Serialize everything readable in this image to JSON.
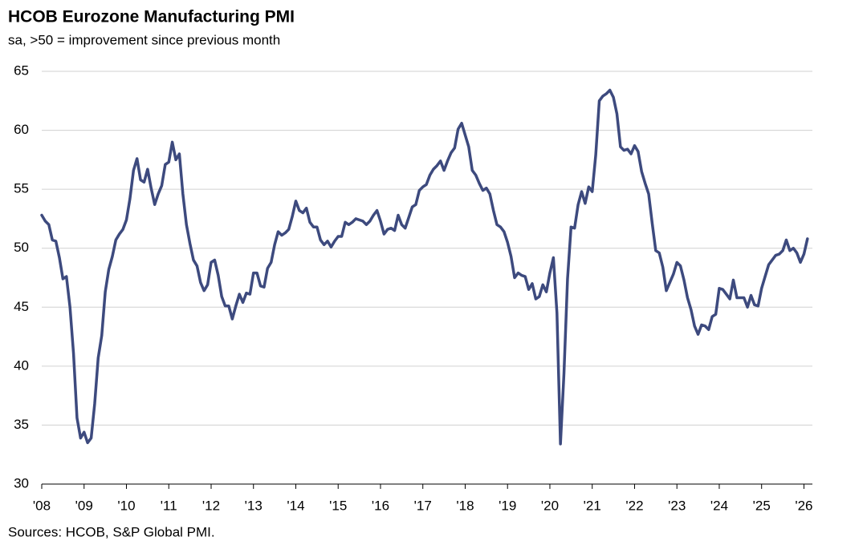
{
  "chart_data": {
    "type": "line",
    "title": "HCOB Eurozone Manufacturing PMI",
    "subtitle": "sa, >50 = improvement  since previous month",
    "source": "Sources: HCOB,  S&P Global  PMI.",
    "grid": true,
    "xlim": [
      2008,
      2026.2
    ],
    "ylim": [
      30,
      65
    ],
    "yticks": [
      30,
      35,
      40,
      45,
      50,
      55,
      60,
      65
    ],
    "xticks": [
      {
        "value": 2008,
        "label": "'08"
      },
      {
        "value": 2009,
        "label": "'09"
      },
      {
        "value": 2010,
        "label": "'10"
      },
      {
        "value": 2011,
        "label": "'11"
      },
      {
        "value": 2012,
        "label": "'12"
      },
      {
        "value": 2013,
        "label": "'13"
      },
      {
        "value": 2014,
        "label": "'14"
      },
      {
        "value": 2015,
        "label": "'15"
      },
      {
        "value": 2016,
        "label": "'16"
      },
      {
        "value": 2017,
        "label": "'17"
      },
      {
        "value": 2018,
        "label": "'18"
      },
      {
        "value": 2019,
        "label": "'19"
      },
      {
        "value": 2020,
        "label": "'20"
      },
      {
        "value": 2021,
        "label": "'21"
      },
      {
        "value": 2022,
        "label": "'22"
      },
      {
        "value": 2023,
        "label": "'23"
      },
      {
        "value": 2024,
        "label": "'24"
      },
      {
        "value": 2025,
        "label": "'25"
      },
      {
        "value": 2026,
        "label": "'26"
      }
    ],
    "x": [
      2008,
      2008.083,
      2008.167,
      2008.25,
      2008.333,
      2008.417,
      2008.5,
      2008.583,
      2008.667,
      2008.75,
      2008.833,
      2008.917,
      2009,
      2009.083,
      2009.167,
      2009.25,
      2009.333,
      2009.417,
      2009.5,
      2009.583,
      2009.667,
      2009.75,
      2009.833,
      2009.917,
      2010,
      2010.083,
      2010.167,
      2010.25,
      2010.333,
      2010.417,
      2010.5,
      2010.583,
      2010.667,
      2010.75,
      2010.833,
      2010.917,
      2011,
      2011.083,
      2011.167,
      2011.25,
      2011.333,
      2011.417,
      2011.5,
      2011.583,
      2011.667,
      2011.75,
      2011.833,
      2011.917,
      2012,
      2012.083,
      2012.167,
      2012.25,
      2012.333,
      2012.417,
      2012.5,
      2012.583,
      2012.667,
      2012.75,
      2012.833,
      2012.917,
      2013,
      2013.083,
      2013.167,
      2013.25,
      2013.333,
      2013.417,
      2013.5,
      2013.583,
      2013.667,
      2013.75,
      2013.833,
      2013.917,
      2014,
      2014.083,
      2014.167,
      2014.25,
      2014.333,
      2014.417,
      2014.5,
      2014.583,
      2014.667,
      2014.75,
      2014.833,
      2014.917,
      2015,
      2015.083,
      2015.167,
      2015.25,
      2015.333,
      2015.417,
      2015.5,
      2015.583,
      2015.667,
      2015.75,
      2015.833,
      2015.917,
      2016,
      2016.083,
      2016.167,
      2016.25,
      2016.333,
      2016.417,
      2016.5,
      2016.583,
      2016.667,
      2016.75,
      2016.833,
      2016.917,
      2017,
      2017.083,
      2017.167,
      2017.25,
      2017.333,
      2017.417,
      2017.5,
      2017.583,
      2017.667,
      2017.75,
      2017.833,
      2017.917,
      2018,
      2018.083,
      2018.167,
      2018.25,
      2018.333,
      2018.417,
      2018.5,
      2018.583,
      2018.667,
      2018.75,
      2018.833,
      2018.917,
      2019,
      2019.083,
      2019.167,
      2019.25,
      2019.333,
      2019.417,
      2019.5,
      2019.583,
      2019.667,
      2019.75,
      2019.833,
      2019.917,
      2020,
      2020.083,
      2020.167,
      2020.25,
      2020.333,
      2020.417,
      2020.5,
      2020.583,
      2020.667,
      2020.75,
      2020.833,
      2020.917,
      2021,
      2021.083,
      2021.167,
      2021.25,
      2021.333,
      2021.417,
      2021.5,
      2021.583,
      2021.667,
      2021.75,
      2021.833,
      2021.917,
      2022,
      2022.083,
      2022.167,
      2022.25,
      2022.333,
      2022.417,
      2022.5,
      2022.583,
      2022.667,
      2022.75,
      2022.833,
      2022.917,
      2023,
      2023.083,
      2023.167,
      2023.25,
      2023.333,
      2023.417,
      2023.5,
      2023.583,
      2023.667,
      2023.75,
      2023.833,
      2023.917,
      2024,
      2024.083,
      2024.167,
      2024.25,
      2024.333,
      2024.417,
      2024.5,
      2024.583,
      2024.667,
      2024.75,
      2024.833,
      2024.917,
      2025,
      2025.083,
      2025.167,
      2025.25,
      2025.333,
      2025.417,
      2025.5,
      2025.583,
      2025.667,
      2025.75,
      2025.833,
      2025.917,
      2026,
      2026.083
    ],
    "series": [
      {
        "color": "#3d4a7e",
        "values": [
          52.8,
          52.3,
          52.0,
          50.7,
          50.6,
          49.2,
          47.4,
          47.6,
          45.0,
          41.1,
          35.6,
          33.9,
          34.4,
          33.5,
          33.9,
          36.8,
          40.7,
          42.6,
          46.3,
          48.2,
          49.3,
          50.7,
          51.2,
          51.6,
          52.4,
          54.2,
          56.6,
          57.6,
          55.8,
          55.6,
          56.7,
          55.1,
          53.7,
          54.6,
          55.3,
          57.1,
          57.3,
          59.0,
          57.5,
          58.0,
          54.6,
          52.0,
          50.4,
          49.0,
          48.5,
          47.1,
          46.4,
          46.9,
          48.8,
          49.0,
          47.7,
          45.9,
          45.1,
          45.1,
          44.0,
          45.1,
          46.1,
          45.4,
          46.2,
          46.1,
          47.9,
          47.9,
          46.8,
          46.7,
          48.3,
          48.8,
          50.3,
          51.4,
          51.1,
          51.3,
          51.6,
          52.7,
          54.0,
          53.2,
          53.0,
          53.4,
          52.2,
          51.8,
          51.8,
          50.7,
          50.3,
          50.6,
          50.1,
          50.6,
          51.0,
          51.0,
          52.2,
          52.0,
          52.2,
          52.5,
          52.4,
          52.3,
          52.0,
          52.3,
          52.8,
          53.2,
          52.3,
          51.2,
          51.6,
          51.7,
          51.5,
          52.8,
          52.0,
          51.7,
          52.6,
          53.5,
          53.7,
          54.9,
          55.2,
          55.4,
          56.2,
          56.7,
          57.0,
          57.4,
          56.6,
          57.4,
          58.1,
          58.5,
          60.1,
          60.6,
          59.6,
          58.6,
          56.6,
          56.2,
          55.5,
          54.9,
          55.1,
          54.6,
          53.2,
          52.0,
          51.8,
          51.4,
          50.5,
          49.3,
          47.5,
          47.9,
          47.7,
          47.6,
          46.5,
          47.0,
          45.7,
          45.9,
          46.9,
          46.3,
          47.9,
          49.2,
          44.5,
          33.4,
          39.4,
          47.4,
          51.8,
          51.7,
          53.7,
          54.8,
          53.8,
          55.2,
          54.8,
          57.9,
          62.5,
          62.9,
          63.1,
          63.4,
          62.8,
          61.4,
          58.6,
          58.3,
          58.4,
          58.0,
          58.7,
          58.2,
          56.5,
          55.5,
          54.6,
          52.1,
          49.8,
          49.6,
          48.4,
          46.4,
          47.1,
          47.8,
          48.8,
          48.5,
          47.3,
          45.8,
          44.8,
          43.4,
          42.7,
          43.5,
          43.4,
          43.1,
          44.2,
          44.4,
          46.6,
          46.5,
          46.1,
          45.7,
          47.3,
          45.8,
          45.8,
          45.8,
          45.0,
          46.0,
          45.2,
          45.1,
          46.6,
          47.6,
          48.6,
          49.0,
          49.4,
          49.5,
          49.8,
          50.7,
          49.8,
          50.0,
          49.6,
          48.8,
          49.5,
          50.8
        ]
      }
    ]
  }
}
